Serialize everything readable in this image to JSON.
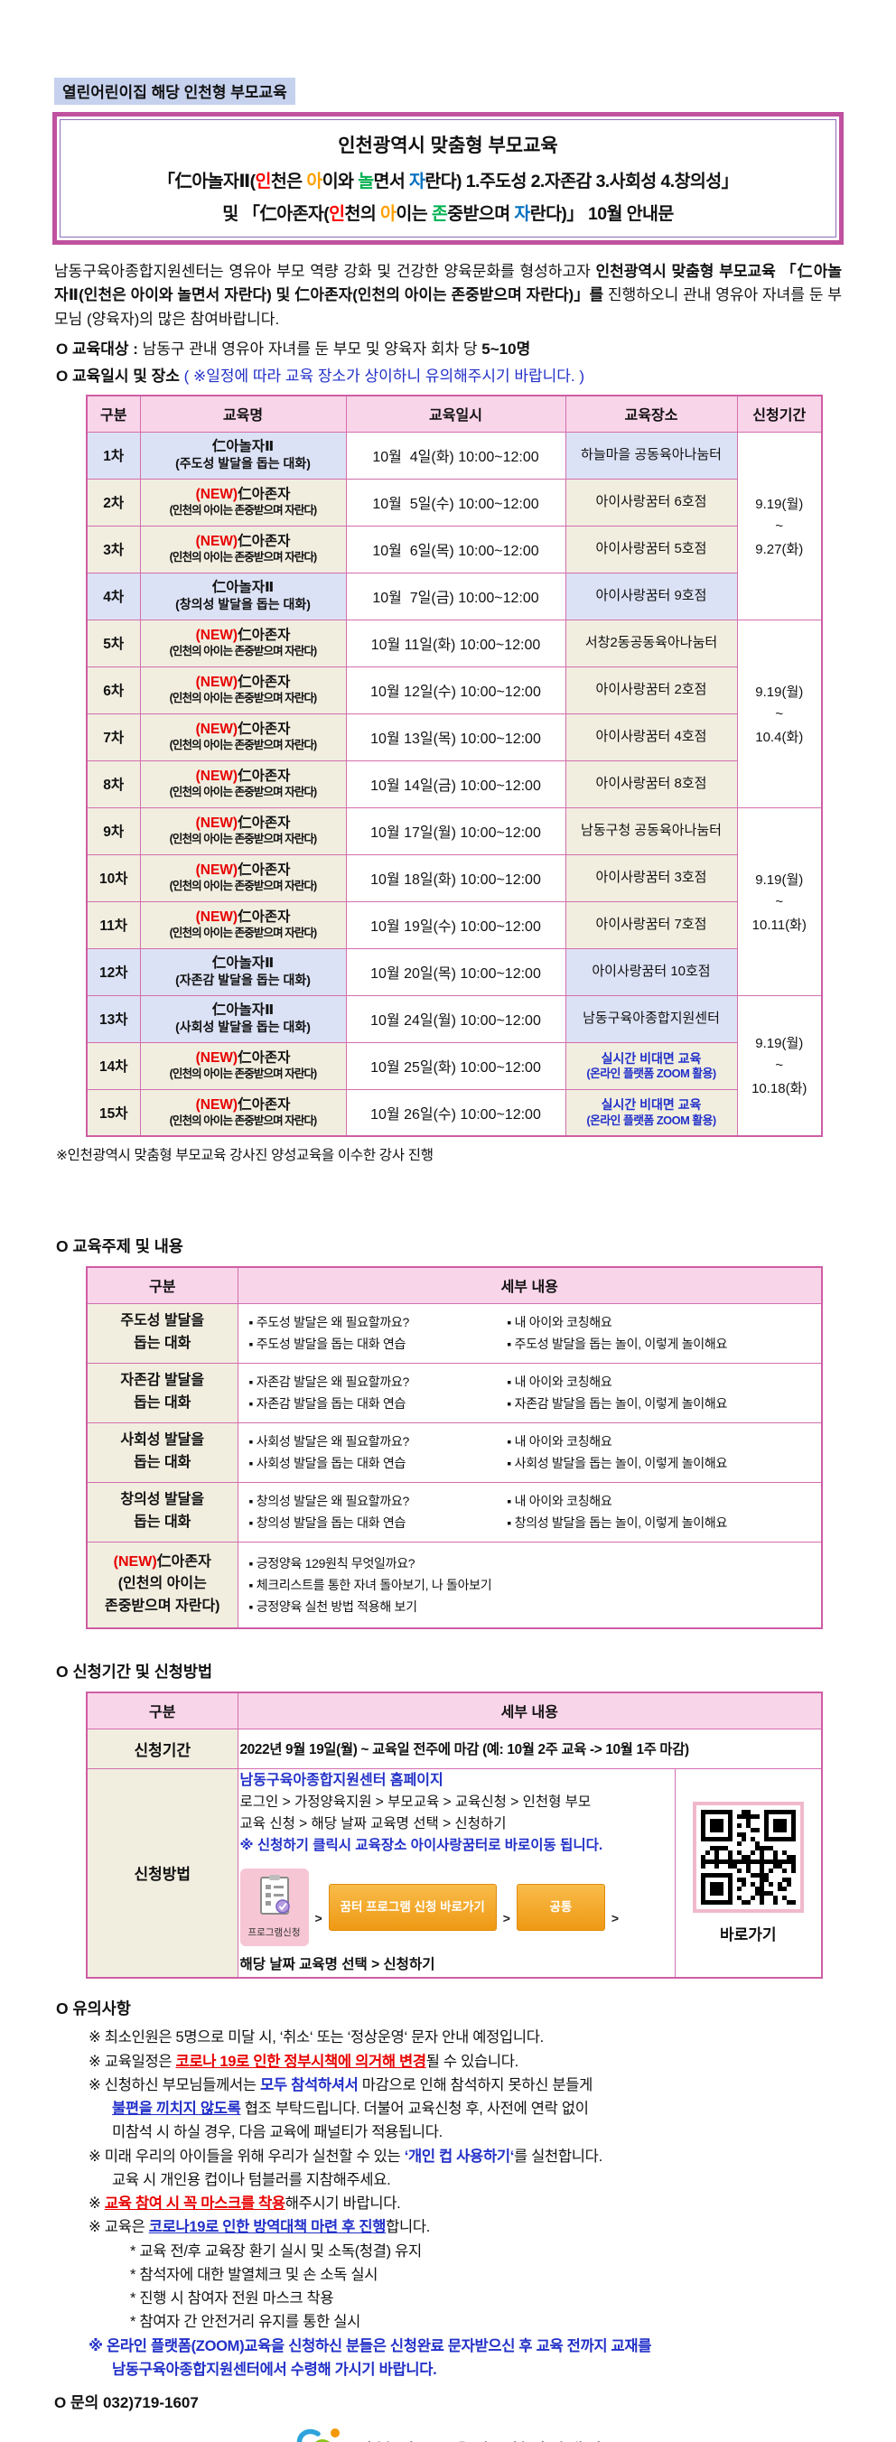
{
  "colors": {
    "accent_pink": "#cf5da4",
    "header_pink": "#f9d5e9",
    "lavender": "#dce2f5",
    "cream": "#f1eee0",
    "red": "#e80000",
    "blue": "#2230c8",
    "title_red": "#ff0000",
    "title_orange": "#ffa000",
    "title_green": "#00b050",
    "title_blue": "#0070c0",
    "orange_button": "#ef9914",
    "badge_blue": "#c6d1ee"
  },
  "badge": "열린어린이집 해당 인천형 부모교육",
  "title": {
    "line1": "인천광역시 맞춤형 부모교육",
    "line2": [
      {
        "t": "「仁아놀자Ⅱ("
      },
      {
        "t": "인",
        "cls": "cr"
      },
      {
        "t": "천은 "
      },
      {
        "t": "아",
        "cls": "co"
      },
      {
        "t": "이와 "
      },
      {
        "t": "놀",
        "cls": "cg"
      },
      {
        "t": "면서 "
      },
      {
        "t": "자",
        "cls": "cb"
      },
      {
        "t": "란다) 1.주도성 2.자존감 3.사회성 4.창의성」"
      }
    ],
    "line3": [
      {
        "t": "및 「仁아존자("
      },
      {
        "t": "인",
        "cls": "cr"
      },
      {
        "t": "천의 "
      },
      {
        "t": "아",
        "cls": "co"
      },
      {
        "t": "이는 "
      },
      {
        "t": "존",
        "cls": "cg"
      },
      {
        "t": "중받으며 "
      },
      {
        "t": "자",
        "cls": "cb"
      },
      {
        "t": "란다)」 10월 안내문"
      }
    ]
  },
  "intro": [
    {
      "t": "남동구육아종합지원센터는 영유아 부모 역량 강화 및 건강한 양육문화를 형성하고자 "
    },
    {
      "t": "인천광역시 맞춤형 부모교육 「仁아놀자Ⅱ(인천은 아이와 놀면서 자란다) 및 仁아존자(인천의 아이는 존중받으며 자란다)」를",
      "cls": "b"
    },
    {
      "t": " 진행하오니 관내 영유아 자녀를 둔 부모님 (양육자)의 많은 참여바랍니다."
    }
  ],
  "audience": [
    {
      "t": "O 교육대상 : ",
      "cls": "b"
    },
    {
      "t": "남동구 관내 영유아 자녀를 둔 부모 및 양육자 회차 당 "
    },
    {
      "t": "5~10명",
      "cls": "b"
    }
  ],
  "schedule_heading": [
    {
      "t": "O 교육일시 및 장소 ",
      "cls": "b"
    },
    {
      "t": "( ※일정에 따라 교육 장소가 상이하니 유의해주시기 바랍니다. )",
      "cls": "cbl"
    }
  ],
  "schedule_table": {
    "headers": [
      "구분",
      "교육명",
      "교육일시",
      "교육장소",
      "신청기간"
    ],
    "new_label": "(NEW)",
    "rows": [
      {
        "no": "1차",
        "theme": "a",
        "name": "仁아놀자Ⅱ",
        "sub": "(주도성 발달을 돕는 대화)",
        "date": "10월  4일(화) 10:00~12:00",
        "place": [
          "하늘마을 공동육아나눔터"
        ]
      },
      {
        "no": "2차",
        "theme": "b",
        "new": true,
        "name": "仁아존자",
        "sub": "(인천의 아이는 존중받으며 자란다)",
        "date": "10월  5일(수) 10:00~12:00",
        "place": [
          "아이사랑꿈터 6호점"
        ]
      },
      {
        "no": "3차",
        "theme": "b",
        "new": true,
        "name": "仁아존자",
        "sub": "(인천의 아이는 존중받으며 자란다)",
        "date": "10월  6일(목) 10:00~12:00",
        "place": [
          "아이사랑꿈터 5호점"
        ]
      },
      {
        "no": "4차",
        "theme": "a",
        "name": "仁아놀자Ⅱ",
        "sub": "(창의성 발달을 돕는 대화)",
        "date": "10월  7일(금) 10:00~12:00",
        "place": [
          "아이사랑꿈터 9호점"
        ]
      },
      {
        "no": "5차",
        "theme": "b",
        "new": true,
        "name": "仁아존자",
        "sub": "(인천의 아이는 존중받으며 자란다)",
        "date": "10월 11일(화) 10:00~12:00",
        "place": [
          "서창2동공동육아나눔터"
        ]
      },
      {
        "no": "6차",
        "theme": "b",
        "new": true,
        "name": "仁아존자",
        "sub": "(인천의 아이는 존중받으며 자란다)",
        "date": "10월 12일(수) 10:00~12:00",
        "place": [
          "아이사랑꿈터 2호점"
        ]
      },
      {
        "no": "7차",
        "theme": "b",
        "new": true,
        "name": "仁아존자",
        "sub": "(인천의 아이는 존중받으며 자란다)",
        "date": "10월 13일(목) 10:00~12:00",
        "place": [
          "아이사랑꿈터 4호점"
        ]
      },
      {
        "no": "8차",
        "theme": "b",
        "new": true,
        "name": "仁아존자",
        "sub": "(인천의 아이는 존중받으며 자란다)",
        "date": "10월 14일(금) 10:00~12:00",
        "place": [
          "아이사랑꿈터 8호점"
        ]
      },
      {
        "no": "9차",
        "theme": "b",
        "new": true,
        "name": "仁아존자",
        "sub": "(인천의 아이는 존중받으며 자란다)",
        "date": "10월 17일(월) 10:00~12:00",
        "place": [
          "남동구청 공동육아나눔터"
        ]
      },
      {
        "no": "10차",
        "theme": "b",
        "new": true,
        "name": "仁아존자",
        "sub": "(인천의 아이는 존중받으며 자란다)",
        "date": "10월 18일(화) 10:00~12:00",
        "place": [
          "아이사랑꿈터 3호점"
        ]
      },
      {
        "no": "11차",
        "theme": "b",
        "new": true,
        "name": "仁아존자",
        "sub": "(인천의 아이는 존중받으며 자란다)",
        "date": "10월 19일(수) 10:00~12:00",
        "place": [
          "아이사랑꿈터 7호점"
        ]
      },
      {
        "no": "12차",
        "theme": "a",
        "name": "仁아놀자Ⅱ",
        "sub": "(자존감 발달을 돕는 대화)",
        "date": "10월 20일(목) 10:00~12:00",
        "place": [
          "아이사랑꿈터 10호점"
        ]
      },
      {
        "no": "13차",
        "theme": "a",
        "name": "仁아놀자Ⅱ",
        "sub": "(사회성 발달을 돕는 대화)",
        "date": "10월 24일(월) 10:00~12:00",
        "place": [
          "남동구육아종합지원센터"
        ]
      },
      {
        "no": "14차",
        "theme": "b",
        "new": true,
        "name": "仁아존자",
        "sub": "(인천의 아이는 존중받으며 자란다)",
        "date": "10월 25일(화) 10:00~12:00",
        "place": [
          "실시간 비대면 교육",
          "(온라인 플랫폼 ZOOM 활용)"
        ],
        "online": true
      },
      {
        "no": "15차",
        "theme": "b",
        "new": true,
        "name": "仁아존자",
        "sub": "(인천의 아이는 존중받으며 자란다)",
        "date": "10월 26일(수) 10:00~12:00",
        "place": [
          "실시간 비대면 교육",
          "(온라인 플랫폼 ZOOM 활용)"
        ],
        "online": true
      }
    ],
    "periods": [
      {
        "start": 0,
        "span": 4,
        "lines": [
          "9.19(월)",
          "~",
          "9.27(화)"
        ]
      },
      {
        "start": 4,
        "span": 4,
        "lines": [
          "9.19(월)",
          "~",
          "10.4(화)"
        ]
      },
      {
        "start": 8,
        "span": 4,
        "lines": [
          "9.19(월)",
          "~",
          "10.11(화)"
        ]
      },
      {
        "start": 12,
        "span": 3,
        "lines": [
          "9.19(월)",
          "~",
          "10.18(화)"
        ]
      }
    ],
    "footnote": "※인천광역시 맞춤형 부모교육 강사진 양성교육을 이수한 강사 진행"
  },
  "topics": {
    "heading": "O 교육주제 및 내용",
    "headers": [
      "구분",
      "세부 내용"
    ],
    "bullet": "▪",
    "rows": [
      {
        "title": [
          [
            {
              "t": "주도성 발달을"
            }
          ],
          [
            {
              "t": "돕는 대화"
            }
          ]
        ],
        "left": [
          "주도성 발달은 왜 필요할까요?",
          "주도성 발달을 돕는 대화 연습"
        ],
        "right": [
          "내 아이와 코칭해요",
          "주도성 발달을 돕는 놀이, 이렇게 놀이해요"
        ]
      },
      {
        "title": [
          [
            {
              "t": "자존감 발달을"
            }
          ],
          [
            {
              "t": "돕는 대화"
            }
          ]
        ],
        "left": [
          "자존감 발달은 왜 필요할까요?",
          "자존감 발달을 돕는 대화 연습"
        ],
        "right": [
          "내 아이와 코칭해요",
          "자존감 발달을 돕는 놀이, 이렇게 놀이해요"
        ]
      },
      {
        "title": [
          [
            {
              "t": "사회성 발달을"
            }
          ],
          [
            {
              "t": "돕는 대화"
            }
          ]
        ],
        "left": [
          "사회성 발달은 왜 필요할까요?",
          "사회성  발달을 돕는 대화 연습"
        ],
        "right": [
          "내 아이와 코칭해요",
          "사회성 발달을 돕는 놀이, 이렇게 놀이해요"
        ]
      },
      {
        "title": [
          [
            {
              "t": "창의성 발달을"
            }
          ],
          [
            {
              "t": "돕는 대화"
            }
          ]
        ],
        "left": [
          "창의성 발달은 왜 필요할까요?",
          "창의성 발달을 돕는 대화 연습"
        ],
        "right": [
          "내 아이와 코칭해요",
          "창의성 발달을 돕는 놀이, 이렇게 놀이해요"
        ]
      },
      {
        "title": [
          [
            {
              "t": "(NEW)",
              "cls": "rb"
            },
            {
              "t": "仁아존자"
            }
          ],
          [
            {
              "t": "(인천의 아이는"
            }
          ],
          [
            {
              "t": "존중받으며 자란다)"
            }
          ]
        ],
        "single": [
          "긍정양육 129원칙 무엇일까요?",
          "체크리스트를 통한 자녀 돌아보기, 나 돌아보기",
          "긍정양육 실천 방법 적용해 보기"
        ]
      }
    ]
  },
  "application": {
    "heading": "O 신청기간 및 신청방법",
    "headers": [
      "구분",
      "세부 내용"
    ],
    "period_label": "신청기간",
    "period_text": "2022년 9월 19일(월) ~ 교육일 전주에 마감 (예: 10월 2주 교육 -> 10월 1주 마감)",
    "method_label": "신청방법",
    "method": {
      "homepage": "남동구육아종합지원센터 홈페이지",
      "path1": "로그인 > 가정양육지원 > 부모교육 > 교육신청 > 인천형 부모",
      "path2": "교육 신청 > 해당 날짜 교육명 선택 > 신청하기",
      "note": "※ 신청하기 클릭시 교육장소 아이사랑꿈터로 바로이동 됩니다.",
      "icon_caption": "프로그램신청",
      "btn1": "꿈터 프로그램 신청 바로가기",
      "btn2": "공통",
      "arrow": ">",
      "tail": "해당 날짜 교육명 선택 > 신청하기",
      "qr_label": "바로가기"
    }
  },
  "notes": {
    "heading": "O 유의사항",
    "items": [
      [
        {
          "ind": 1,
          "seg": [
            {
              "t": "※ 최소인원은 5명으로 미달 시, ‘취소‘ 또는 ‘정상운영‘  문자 안내 예정입니다."
            }
          ]
        }
      ],
      [
        {
          "ind": 1,
          "seg": [
            {
              "t": "※ 교육일정은 "
            },
            {
              "t": "코로나 19로 인한 정부시책에 의거해 변경",
              "cls": "rbu"
            },
            {
              "t": "될 수 있습니다."
            }
          ]
        }
      ],
      [
        {
          "ind": 1,
          "seg": [
            {
              "t": "※ 신청하신 부모님들께서는 "
            },
            {
              "t": "모두 참석하셔서",
              "cls": "bb"
            },
            {
              "t": " 마감으로 인해 참석하지 못하신 분들게"
            }
          ]
        },
        {
          "ind": 2,
          "seg": [
            {
              "t": "불편을 끼치지 않도록",
              "cls": "bbu"
            },
            {
              "t": " 협조 부탁드립니다. 더불어 교육신청 후, 사전에 연락 없이"
            }
          ]
        },
        {
          "ind": 2,
          "seg": [
            {
              "t": "미참석 시 하실 경우, 다음 교육에 패널티가 적용됩니다."
            }
          ]
        }
      ],
      [
        {
          "ind": 1,
          "seg": [
            {
              "t": "※ 미래 우리의 아이들을 위해 우리가 실천할 수 있는 "
            },
            {
              "t": "‘개인 컵 사용하기‘",
              "cls": "bb"
            },
            {
              "t": "를 실천합니다."
            }
          ]
        },
        {
          "ind": 2,
          "seg": [
            {
              "t": "교육 시 개인용 컵이나 텀블러를 지참해주세요."
            }
          ]
        }
      ],
      [
        {
          "ind": 1,
          "seg": [
            {
              "t": "※ "
            },
            {
              "t": "교육 참여 시 꼭 마스크를 착용",
              "cls": "rbu"
            },
            {
              "t": "해주시기 바랍니다."
            }
          ]
        }
      ],
      [
        {
          "ind": 1,
          "seg": [
            {
              "t": "※ 교육은 "
            },
            {
              "t": "코로나19로 인한 방역대책 마련 후 진행",
              "cls": "bbu"
            },
            {
              "t": "합니다."
            }
          ]
        },
        {
          "ind": 3,
          "seg": [
            {
              "t": "* 교육 전/후 교육장 환기 실시 및 소독(청결) 유지"
            }
          ]
        },
        {
          "ind": 3,
          "seg": [
            {
              "t": "* 참석자에 대한 발열체크 및 손 소독 실시"
            }
          ]
        },
        {
          "ind": 3,
          "seg": [
            {
              "t": "* 진행 시 참여자 전원 마스크 착용"
            }
          ]
        },
        {
          "ind": 3,
          "seg": [
            {
              "t": "* 참여자 간 안전거리 유지를 통한 실시"
            }
          ]
        }
      ],
      [
        {
          "ind": 1,
          "seg": [
            {
              "t": "※ ",
              "cls": "bb"
            },
            {
              "t": "온라인 플랫폼(ZOOM)교육을 신청하신 분들은 신청완료 문자받으신 후 교육 전까지 교재를",
              "cls": "bb"
            }
          ]
        },
        {
          "ind": 2,
          "seg": [
            {
              "t": "남동구육아종합지원센터에서 수령해 가시기 바랍니다.",
              "cls": "bb"
            }
          ]
        }
      ]
    ]
  },
  "contact": "O 문의 032)719-1607",
  "footer": {
    "org": "인천 남동구육아종합지원센터"
  }
}
